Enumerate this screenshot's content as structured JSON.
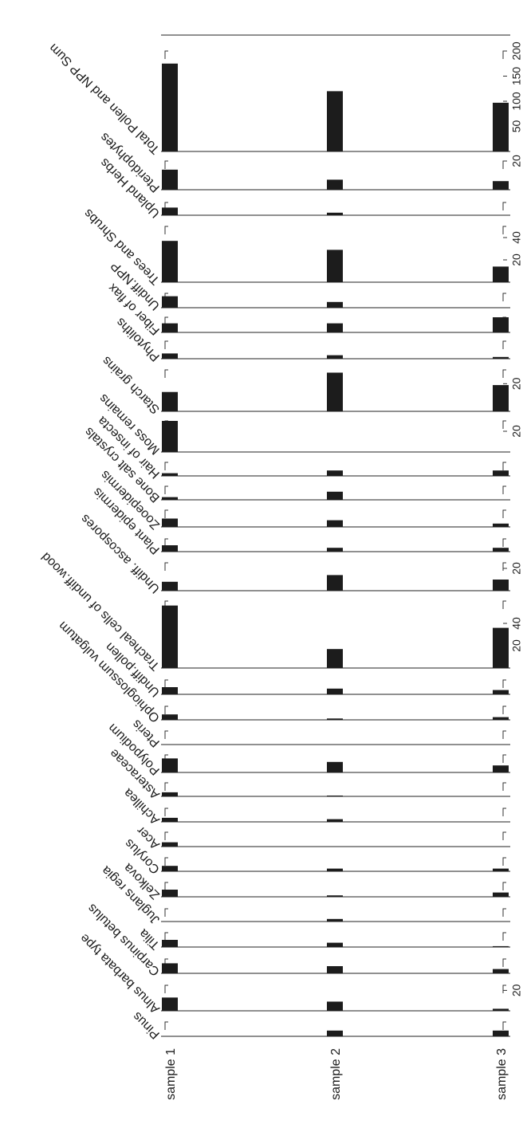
{
  "chart_data": {
    "type": "bar",
    "orientation": "rotated-strat-diagram",
    "samples": [
      "sample 1",
      "sample 2",
      "sample 3"
    ],
    "panels": [
      {
        "label": "Total Pollen and NPP Sum",
        "values": [
          175,
          120,
          97
        ],
        "max": 200,
        "ticks": [
          50,
          100,
          150,
          200
        ],
        "tick_labels": [
          "50",
          "100",
          "150",
          "200"
        ]
      },
      {
        "label": "Pteridophytes",
        "values": [
          14,
          7,
          6
        ],
        "max": 20,
        "ticks": [
          20
        ],
        "tick_labels": [
          "20"
        ]
      },
      {
        "label": "Upland Herbs",
        "values": [
          3,
          1,
          0
        ],
        "max": 5,
        "ticks": [],
        "tick_labels": []
      },
      {
        "label": "Trees and Shrubs",
        "values": [
          37,
          29,
          14
        ],
        "max": 50,
        "ticks": [
          20,
          40
        ],
        "tick_labels": [
          "20",
          "40"
        ]
      },
      {
        "label": "Undiff.NPP",
        "values": [
          4,
          2,
          0
        ],
        "max": 5,
        "ticks": [],
        "tick_labels": []
      },
      {
        "label": "Fiber of flax",
        "values": [
          3,
          3,
          5
        ],
        "max": 5,
        "ticks": [],
        "tick_labels": []
      },
      {
        "label": "Phytoliths",
        "values": [
          1.5,
          1,
          0.5
        ],
        "max": 5,
        "ticks": [],
        "tick_labels": []
      },
      {
        "label": "Starch grains",
        "values": [
          14,
          28,
          19
        ],
        "max": 30,
        "ticks": [
          20
        ],
        "tick_labels": [
          "20"
        ]
      },
      {
        "label": "Moss remains",
        "values": [
          30,
          0,
          0
        ],
        "max": 30,
        "ticks": [
          20
        ],
        "tick_labels": [
          "20"
        ]
      },
      {
        "label": "Hair of insecta",
        "values": [
          1,
          2,
          2
        ],
        "max": 5,
        "ticks": [],
        "tick_labels": []
      },
      {
        "label": "Bone salt crystals",
        "values": [
          1,
          3,
          0
        ],
        "max": 5,
        "ticks": [],
        "tick_labels": []
      },
      {
        "label": "Zooepidermis",
        "values": [
          2.5,
          2,
          1
        ],
        "max": 5,
        "ticks": [],
        "tick_labels": []
      },
      {
        "label": "Plant epidermis",
        "values": [
          2.5,
          1.5,
          1.5
        ],
        "max": 5,
        "ticks": [],
        "tick_labels": []
      },
      {
        "label": "Undiff. ascospores",
        "values": [
          8,
          14,
          10
        ],
        "max": 25,
        "ticks": [
          20
        ],
        "tick_labels": [
          "20"
        ]
      },
      {
        "label": "Tracheal cells of undiff.wood",
        "values": [
          56,
          17,
          36
        ],
        "max": 60,
        "ticks": [
          20,
          40
        ],
        "tick_labels": [
          "20",
          "40"
        ]
      },
      {
        "label": "Undiff.pollen",
        "values": [
          2.5,
          2,
          1.5
        ],
        "max": 5,
        "ticks": [],
        "tick_labels": []
      },
      {
        "label": "Ophioglossum vulgatum",
        "values": [
          2,
          0.5,
          1
        ],
        "max": 5,
        "ticks": [],
        "tick_labels": []
      },
      {
        "label": "Pteris",
        "values": [
          0,
          0,
          0
        ],
        "max": 5,
        "ticks": [],
        "tick_labels": []
      },
      {
        "label": "Polypodium",
        "values": [
          4,
          3,
          2
        ],
        "max": 5,
        "ticks": [],
        "tick_labels": []
      },
      {
        "label": "Asteraceae",
        "values": [
          1.5,
          0.3,
          0
        ],
        "max": 5,
        "ticks": [],
        "tick_labels": []
      },
      {
        "label": "Achillea",
        "values": [
          1.5,
          1,
          0
        ],
        "max": 5,
        "ticks": [],
        "tick_labels": []
      },
      {
        "label": "Acer",
        "values": [
          1.5,
          0,
          0
        ],
        "max": 5,
        "ticks": [],
        "tick_labels": []
      },
      {
        "label": "Corylus",
        "values": [
          2,
          1,
          1
        ],
        "max": 5,
        "ticks": [],
        "tick_labels": []
      },
      {
        "label": "Zelkova",
        "values": [
          2.5,
          0.5,
          1.5
        ],
        "max": 5,
        "ticks": [],
        "tick_labels": []
      },
      {
        "label": "Juglans regia",
        "values": [
          0,
          1,
          0
        ],
        "max": 5,
        "ticks": [],
        "tick_labels": []
      },
      {
        "label": "Tilia",
        "values": [
          2.5,
          1.5,
          0.3
        ],
        "max": 5,
        "ticks": [],
        "tick_labels": []
      },
      {
        "label": "Carpinus betulus",
        "values": [
          3.5,
          2.5,
          1.5
        ],
        "max": 5,
        "ticks": [],
        "tick_labels": []
      },
      {
        "label": "Alnus barbata type",
        "values": [
          13,
          9,
          2
        ],
        "max": 25,
        "ticks": [
          20
        ],
        "tick_labels": [
          "20"
        ]
      },
      {
        "label": "Pinus",
        "values": [
          0,
          2,
          2
        ],
        "max": 5,
        "ticks": [],
        "tick_labels": []
      }
    ]
  }
}
